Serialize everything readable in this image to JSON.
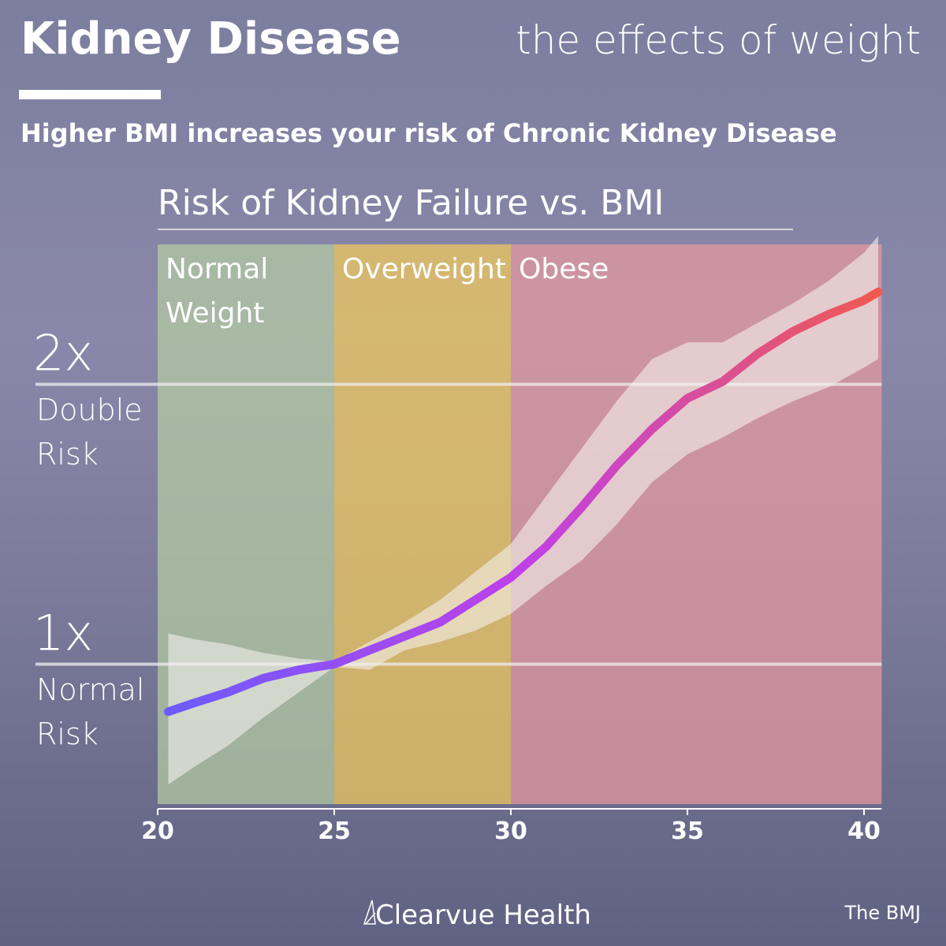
{
  "header": {
    "title": "Kidney Disease",
    "tagline": "the effects of weight",
    "headline": "Higher BMI increases your risk of Chronic Kidney Disease"
  },
  "chart_data": {
    "type": "line",
    "title": "Risk of Kidney Failure vs. BMI",
    "x": [
      20.3,
      21,
      22,
      23,
      24,
      25,
      26,
      27,
      28,
      29,
      30,
      31,
      32,
      33,
      34,
      35,
      36,
      37,
      38,
      39,
      40,
      40.4
    ],
    "series": [
      {
        "values": [
          0.83,
          0.86,
          0.9,
          0.95,
          0.98,
          1.0,
          1.05,
          1.1,
          1.15,
          1.23,
          1.31,
          1.42,
          1.56,
          1.71,
          1.84,
          1.95,
          2.01,
          2.11,
          2.19,
          2.25,
          2.3,
          2.33
        ],
        "colors": [
          "#6a5cff",
          "#c040e8",
          "#f05a50"
        ]
      }
    ],
    "band": {
      "upper": [
        1.11,
        1.09,
        1.07,
        1.04,
        1.02,
        1.01,
        1.08,
        1.15,
        1.23,
        1.33,
        1.43,
        1.6,
        1.77,
        1.94,
        2.09,
        2.15,
        2.15,
        2.22,
        2.29,
        2.37,
        2.47,
        2.53
      ],
      "lower": [
        0.57,
        0.63,
        0.71,
        0.81,
        0.9,
        0.99,
        0.98,
        1.05,
        1.08,
        1.12,
        1.18,
        1.28,
        1.37,
        1.5,
        1.65,
        1.75,
        1.81,
        1.88,
        1.94,
        1.99,
        2.06,
        2.09
      ],
      "color": "#f4f0ec"
    },
    "regions": [
      {
        "label": "Normal Weight",
        "start": 20,
        "end": 25,
        "color": "#b4cca2"
      },
      {
        "label": "Overweight",
        "start": 25,
        "end": 30,
        "color": "#f2ca5c"
      },
      {
        "label": "Obese",
        "start": 30,
        "end": 40.5,
        "color": "#e79a9e"
      }
    ],
    "xlim": [
      20,
      40.5
    ],
    "xticks": [
      20,
      25,
      30,
      35,
      40
    ],
    "ylim": [
      0.5,
      2.5
    ],
    "yticks": [
      {
        "value": 1,
        "label": "1x"
      },
      {
        "value": 2,
        "label": "2x"
      }
    ],
    "ytick_notes": [
      "Normal Risk",
      "Double Risk"
    ]
  },
  "footer": {
    "brand": "Clearvue Health",
    "source": "The BMJ"
  }
}
